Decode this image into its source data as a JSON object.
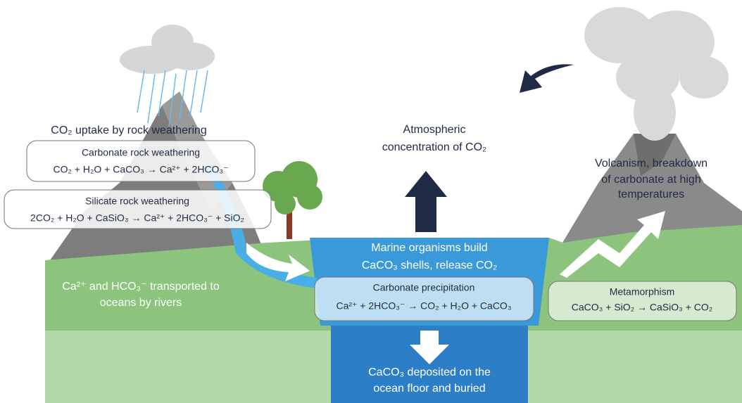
{
  "weathering": {
    "title": "CO₂ uptake by rock weathering",
    "carbonate": {
      "title": "Carbonate rock weathering",
      "equation": "CO₂ + H₂O + CaCO₃ → Ca²⁺ + 2HCO₃⁻"
    },
    "silicate": {
      "title": "Silicate rock weathering",
      "equation": "2CO₂ + H₂O + CaSiO₃ → Ca²⁺ + 2HCO₃⁻ + SiO₂"
    }
  },
  "atmosphere": {
    "lines": [
      "Atmospheric",
      "concentration of CO₂"
    ]
  },
  "volcanism": {
    "lines": [
      "Volcanism, breakdown",
      "of carbonate at high",
      "temperatures"
    ]
  },
  "marine": {
    "lines": [
      "Marine organisms build",
      "CaCO₃ shells, release CO₂"
    ]
  },
  "rivers": {
    "lines": [
      "Ca²⁺ and HCO₃⁻ transported to",
      "oceans by rivers"
    ]
  },
  "precipitation": {
    "title": "Carbonate precipitation",
    "equation": "Ca²⁺ + 2HCO₃⁻ → CO₂ + H₂O + CaCO₃"
  },
  "metamorphism": {
    "title": "Metamorphism",
    "equation": "CaCO₃ + SiO₂ → CaSiO₃ + CO₂"
  },
  "burial": {
    "lines": [
      "CaCO₃ deposited on the",
      "ocean floor and buried"
    ]
  }
}
